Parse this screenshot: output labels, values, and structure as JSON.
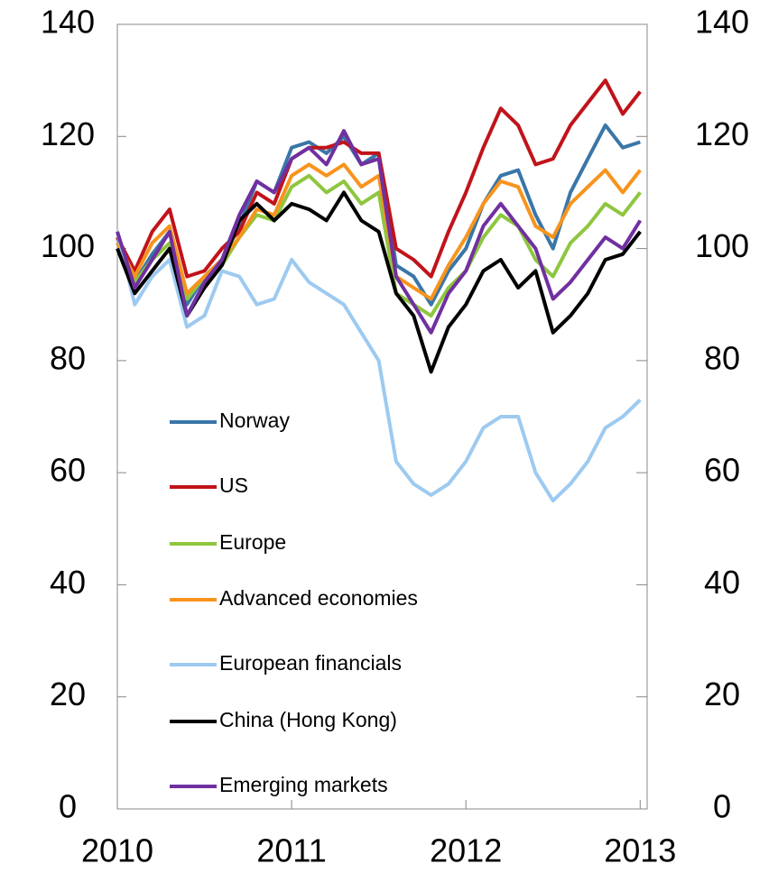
{
  "chart_data": {
    "type": "line",
    "x": [
      2010.0,
      2010.1,
      2010.2,
      2010.3,
      2010.4,
      2010.5,
      2010.6,
      2010.7,
      2010.8,
      2010.9,
      2011.0,
      2011.1,
      2011.2,
      2011.3,
      2011.4,
      2011.5,
      2011.6,
      2011.7,
      2011.8,
      2011.9,
      2012.0,
      2012.1,
      2012.2,
      2012.3,
      2012.4,
      2012.5,
      2012.6,
      2012.7,
      2012.8,
      2012.9,
      2013.0
    ],
    "series": [
      {
        "name": "Norway",
        "color": "#3a76a8",
        "values": [
          102,
          94,
          99,
          103,
          90,
          95,
          98,
          104,
          112,
          110,
          118,
          119,
          117,
          120,
          115,
          117,
          97,
          95,
          90,
          96,
          100,
          108,
          113,
          114,
          106,
          100,
          110,
          116,
          122,
          118,
          119
        ]
      },
      {
        "name": "US",
        "color": "#c0141a",
        "values": [
          102,
          96,
          103,
          107,
          95,
          96,
          100,
          103,
          110,
          108,
          116,
          118,
          118,
          119,
          117,
          117,
          100,
          98,
          95,
          103,
          110,
          118,
          125,
          122,
          115,
          116,
          122,
          126,
          130,
          124,
          128
        ]
      },
      {
        "name": "Europe",
        "color": "#8ec63f",
        "values": [
          101,
          94,
          98,
          101,
          91,
          95,
          97,
          102,
          106,
          105,
          111,
          113,
          110,
          112,
          108,
          110,
          92,
          90,
          88,
          93,
          96,
          102,
          106,
          104,
          98,
          95,
          101,
          104,
          108,
          106,
          110
        ]
      },
      {
        "name": "Advanced economies",
        "color": "#f7941d",
        "values": [
          101,
          95,
          101,
          104,
          92,
          95,
          98,
          102,
          107,
          106,
          113,
          115,
          113,
          115,
          111,
          113,
          95,
          93,
          91,
          97,
          102,
          108,
          112,
          111,
          104,
          102,
          108,
          111,
          114,
          110,
          114
        ]
      },
      {
        "name": "European financials",
        "color": "#9dcaf0",
        "values": [
          103,
          90,
          95,
          98,
          86,
          88,
          96,
          95,
          90,
          91,
          98,
          94,
          92,
          90,
          85,
          80,
          62,
          58,
          56,
          58,
          62,
          68,
          70,
          70,
          60,
          55,
          58,
          62,
          68,
          70,
          73
        ]
      },
      {
        "name": "China (Hong Kong)",
        "color": "#000000",
        "values": [
          100,
          92,
          96,
          100,
          88,
          93,
          97,
          105,
          108,
          105,
          108,
          107,
          105,
          110,
          105,
          103,
          92,
          88,
          78,
          86,
          90,
          96,
          98,
          93,
          96,
          85,
          88,
          92,
          98,
          99,
          103
        ]
      },
      {
        "name": "Emerging markets",
        "color": "#7030a0",
        "values": [
          103,
          93,
          98,
          103,
          88,
          94,
          98,
          106,
          112,
          110,
          116,
          118,
          115,
          121,
          115,
          116,
          95,
          90,
          85,
          92,
          96,
          104,
          108,
          104,
          100,
          91,
          94,
          98,
          102,
          100,
          105
        ]
      }
    ],
    "xlim": [
      2010,
      2013.04
    ],
    "xticks": [
      2010,
      2011,
      2012,
      2013
    ],
    "ylim": [
      0,
      140
    ],
    "yticks": [
      0,
      20,
      40,
      60,
      80,
      100,
      120,
      140
    ],
    "y2lim": [
      0,
      140
    ],
    "y2ticks": [
      0,
      20,
      40,
      60,
      80,
      100,
      120,
      140
    ],
    "legend": "lower-left"
  }
}
